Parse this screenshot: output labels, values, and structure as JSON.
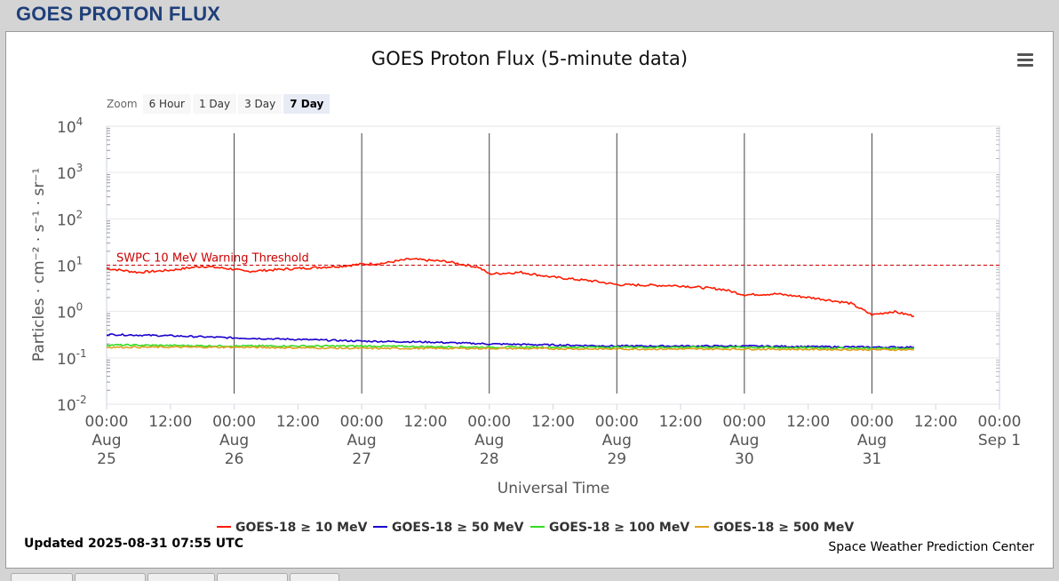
{
  "page": {
    "header_title": "GOES PROTON FLUX",
    "updated": "Updated 2025-08-31 07:55 UTC",
    "credit": "Space Weather Prediction Center"
  },
  "zoom": {
    "label": "Zoom",
    "buttons": [
      {
        "label": "6 Hour",
        "active": false
      },
      {
        "label": "1 Day",
        "active": false
      },
      {
        "label": "3 Day",
        "active": false
      },
      {
        "label": "7 Day",
        "active": true
      }
    ]
  },
  "icons": {
    "menu": "hamburger-menu-icon"
  },
  "chart_data": {
    "type": "line",
    "title": "GOES Proton Flux (5-minute data)",
    "xlabel": "Universal Time",
    "ylabel": "Particles · cm⁻² · s⁻¹ · sr⁻¹",
    "y_scale": "log",
    "ylim": [
      0.01,
      10000
    ],
    "y_ticks": [
      {
        "value": 0.01,
        "label": "10",
        "exp": "-2"
      },
      {
        "value": 0.1,
        "label": "10",
        "exp": "-1"
      },
      {
        "value": 1,
        "label": "10",
        "exp": "0"
      },
      {
        "value": 10,
        "label": "10",
        "exp": "1"
      },
      {
        "value": 100,
        "label": "10",
        "exp": "2"
      },
      {
        "value": 1000,
        "label": "10",
        "exp": "3"
      },
      {
        "value": 10000,
        "label": "10",
        "exp": "4"
      }
    ],
    "xlim": [
      "2025-08-25 00:00",
      "2025-09-01 00:00"
    ],
    "x_ticks": [
      {
        "t": "2025-08-25 00:00",
        "lines": [
          "00:00",
          "Aug",
          "25"
        ],
        "day_line": false
      },
      {
        "t": "2025-08-25 12:00",
        "lines": [
          "12:00"
        ],
        "day_line": false
      },
      {
        "t": "2025-08-26 00:00",
        "lines": [
          "00:00",
          "Aug",
          "26"
        ],
        "day_line": true
      },
      {
        "t": "2025-08-26 12:00",
        "lines": [
          "12:00"
        ],
        "day_line": false
      },
      {
        "t": "2025-08-27 00:00",
        "lines": [
          "00:00",
          "Aug",
          "27"
        ],
        "day_line": true
      },
      {
        "t": "2025-08-27 12:00",
        "lines": [
          "12:00"
        ],
        "day_line": false
      },
      {
        "t": "2025-08-28 00:00",
        "lines": [
          "00:00",
          "Aug",
          "28"
        ],
        "day_line": true
      },
      {
        "t": "2025-08-28 12:00",
        "lines": [
          "12:00"
        ],
        "day_line": false
      },
      {
        "t": "2025-08-29 00:00",
        "lines": [
          "00:00",
          "Aug",
          "29"
        ],
        "day_line": true
      },
      {
        "t": "2025-08-29 12:00",
        "lines": [
          "12:00"
        ],
        "day_line": false
      },
      {
        "t": "2025-08-30 00:00",
        "lines": [
          "00:00",
          "Aug",
          "30"
        ],
        "day_line": true
      },
      {
        "t": "2025-08-30 12:00",
        "lines": [
          "12:00"
        ],
        "day_line": false
      },
      {
        "t": "2025-08-31 00:00",
        "lines": [
          "00:00",
          "Aug",
          "31"
        ],
        "day_line": true
      },
      {
        "t": "2025-08-31 12:00",
        "lines": [
          "12:00"
        ],
        "day_line": false
      },
      {
        "t": "2025-09-01 00:00",
        "lines": [
          "00:00",
          "Sep 1"
        ],
        "day_line": false
      }
    ],
    "threshold": {
      "value": 10,
      "label": "SWPC 10 MeV Warning Threshold",
      "color": "#cc0000"
    },
    "legend_placement": "bottom-center",
    "series": [
      {
        "name": "GOES-18 ≥ 10 MeV",
        "color": "#ff1a00",
        "points": [
          [
            "2025-08-25 00:00",
            8.5
          ],
          [
            "2025-08-25 06:00",
            7.0
          ],
          [
            "2025-08-25 12:00",
            7.8
          ],
          [
            "2025-08-25 18:00",
            9.5
          ],
          [
            "2025-08-26 00:00",
            8.2
          ],
          [
            "2025-08-26 02:00",
            7.3
          ],
          [
            "2025-08-26 12:00",
            8.5
          ],
          [
            "2025-08-26 20:00",
            9.5
          ],
          [
            "2025-08-27 00:00",
            10.5
          ],
          [
            "2025-08-27 04:00",
            11.0
          ],
          [
            "2025-08-27 09:00",
            13.5
          ],
          [
            "2025-08-27 16:00",
            12.0
          ],
          [
            "2025-08-27 22:00",
            9.0
          ],
          [
            "2025-08-28 00:00",
            6.5
          ],
          [
            "2025-08-28 06:00",
            7.0
          ],
          [
            "2025-08-28 12:00",
            5.5
          ],
          [
            "2025-08-28 20:00",
            4.5
          ],
          [
            "2025-08-29 00:00",
            3.8
          ],
          [
            "2025-08-29 12:00",
            3.6
          ],
          [
            "2025-08-29 20:00",
            3.0
          ],
          [
            "2025-08-30 00:00",
            2.3
          ],
          [
            "2025-08-30 06:00",
            2.4
          ],
          [
            "2025-08-30 14:00",
            1.9
          ],
          [
            "2025-08-30 20:00",
            1.5
          ],
          [
            "2025-08-31 00:00",
            0.85
          ],
          [
            "2025-08-31 04:00",
            1.0
          ],
          [
            "2025-08-31 07:55",
            0.8
          ]
        ]
      },
      {
        "name": "GOES-18 ≥ 50 MeV",
        "color": "#1a00cc",
        "points": [
          [
            "2025-08-25 00:00",
            0.32
          ],
          [
            "2025-08-25 12:00",
            0.3
          ],
          [
            "2025-08-26 00:00",
            0.27
          ],
          [
            "2025-08-26 12:00",
            0.25
          ],
          [
            "2025-08-27 00:00",
            0.23
          ],
          [
            "2025-08-27 12:00",
            0.22
          ],
          [
            "2025-08-28 00:00",
            0.2
          ],
          [
            "2025-08-28 12:00",
            0.19
          ],
          [
            "2025-08-29 00:00",
            0.18
          ],
          [
            "2025-08-30 00:00",
            0.18
          ],
          [
            "2025-08-31 00:00",
            0.17
          ],
          [
            "2025-08-31 07:55",
            0.17
          ]
        ]
      },
      {
        "name": "GOES-18 ≥ 100 MeV",
        "color": "#33dd22",
        "points": [
          [
            "2025-08-25 00:00",
            0.19
          ],
          [
            "2025-08-26 00:00",
            0.18
          ],
          [
            "2025-08-27 00:00",
            0.18
          ],
          [
            "2025-08-28 00:00",
            0.17
          ],
          [
            "2025-08-29 00:00",
            0.17
          ],
          [
            "2025-08-30 00:00",
            0.17
          ],
          [
            "2025-08-31 00:00",
            0.16
          ],
          [
            "2025-08-31 07:55",
            0.16
          ]
        ]
      },
      {
        "name": "GOES-18 ≥ 500 MeV",
        "color": "#e0a020",
        "points": [
          [
            "2025-08-25 00:00",
            0.17
          ],
          [
            "2025-08-26 00:00",
            0.17
          ],
          [
            "2025-08-27 00:00",
            0.16
          ],
          [
            "2025-08-28 00:00",
            0.16
          ],
          [
            "2025-08-29 00:00",
            0.155
          ],
          [
            "2025-08-30 00:00",
            0.155
          ],
          [
            "2025-08-31 00:00",
            0.15
          ],
          [
            "2025-08-31 07:55",
            0.15
          ]
        ]
      }
    ]
  }
}
